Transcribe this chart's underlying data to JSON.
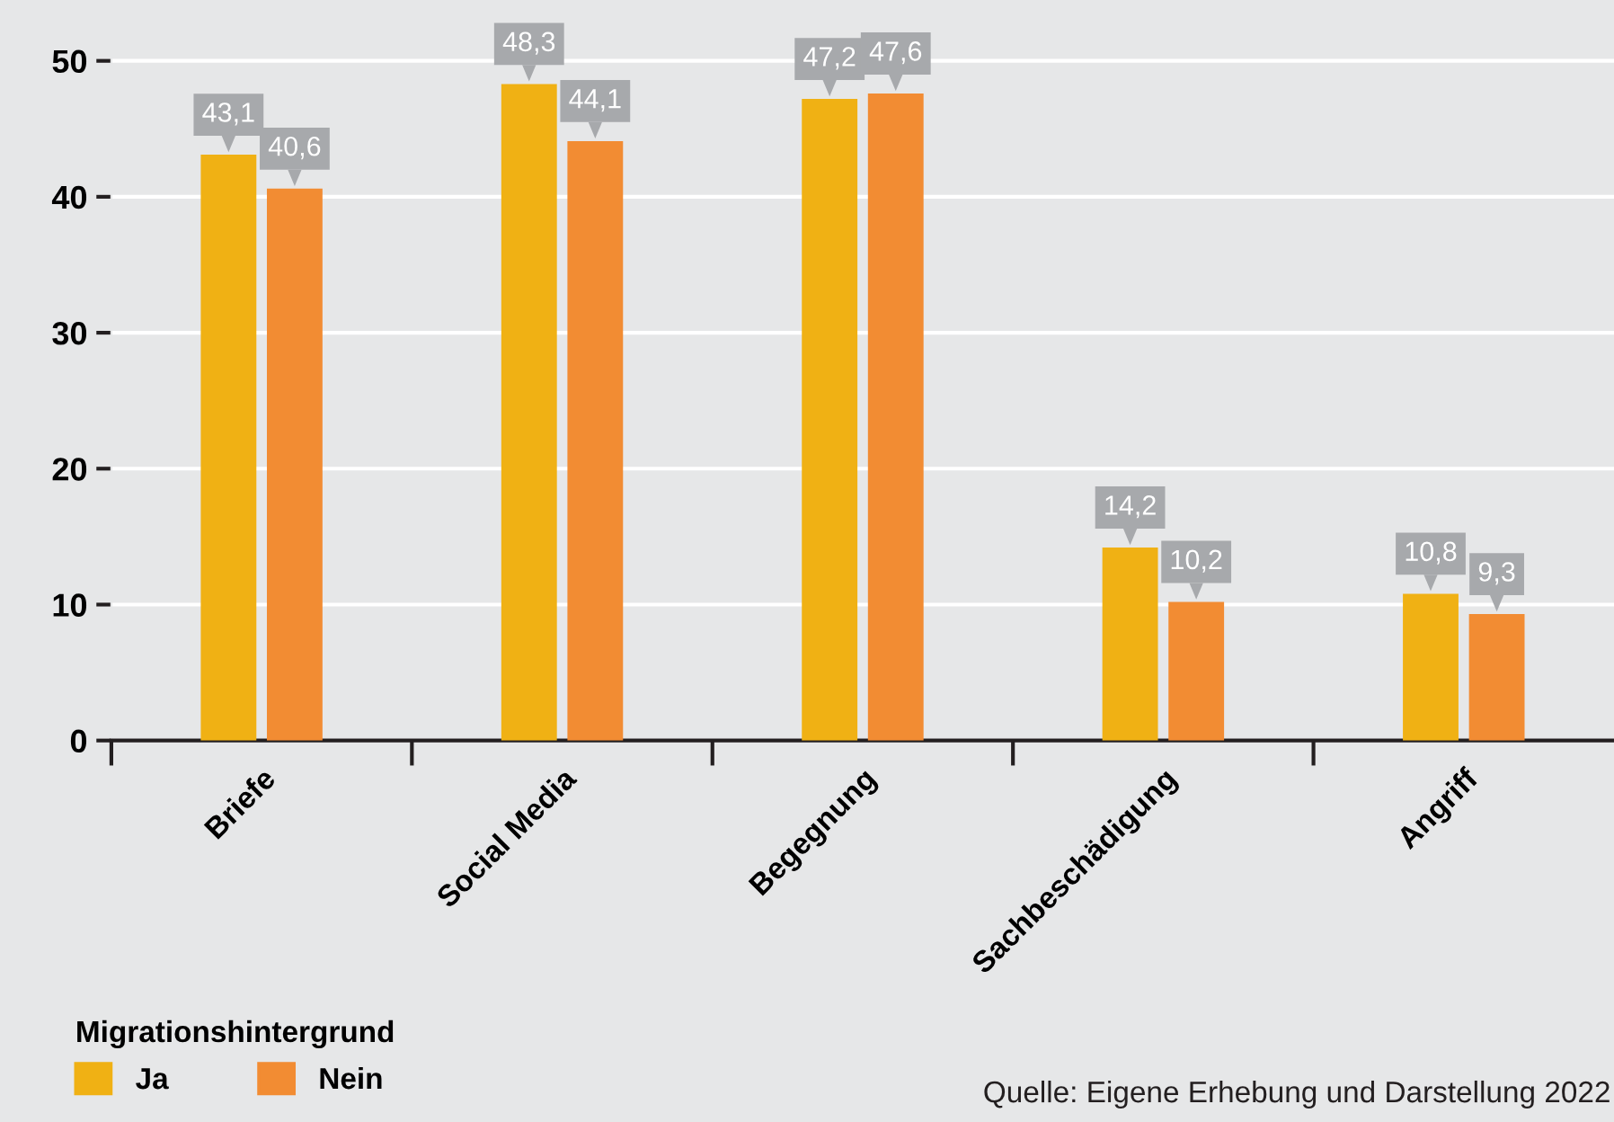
{
  "chart_data": {
    "type": "bar",
    "categories": [
      "Briefe",
      "Social Media",
      "Begegnung",
      "Sachbeschädigung",
      "Angriff"
    ],
    "series": [
      {
        "name": "Ja",
        "color": "#f0b114",
        "values": [
          43.1,
          48.3,
          47.2,
          14.2,
          10.8
        ],
        "value_labels": [
          "43,1",
          "48,3",
          "47,2",
          "14,2",
          "10,8"
        ]
      },
      {
        "name": "Nein",
        "color": "#f28c33",
        "values": [
          40.6,
          44.1,
          47.6,
          10.2,
          9.3
        ],
        "value_labels": [
          "40,6",
          "44,1",
          "47,6",
          "10,2",
          "9,3"
        ]
      }
    ],
    "ylim": [
      0,
      52
    ],
    "yticks": [
      0,
      10,
      20,
      30,
      40,
      50
    ],
    "grid": "y",
    "legend": "bottom left",
    "legend_title": "Migrationshintergrund",
    "annotations": [
      "Quelle: Eigene Erhebung und Darstellung 2022"
    ]
  }
}
